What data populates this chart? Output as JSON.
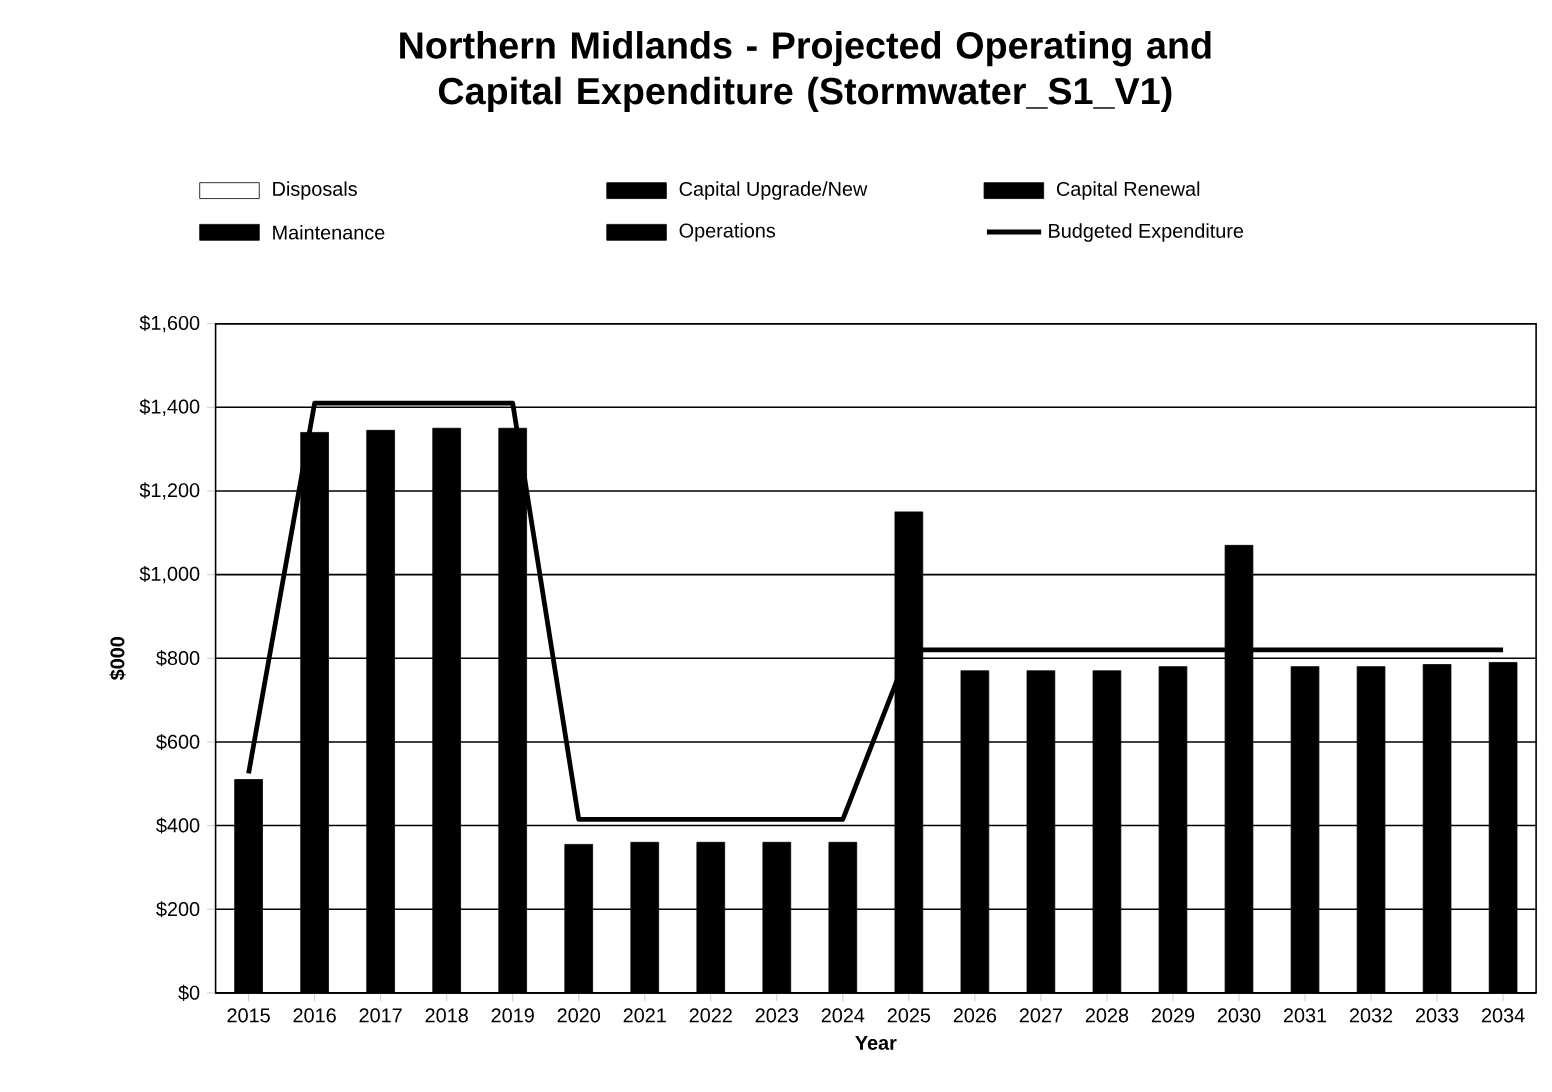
{
  "chart_data": {
    "type": "bar",
    "title": "Northern Midlands - Projected Operating and Capital Expenditure (Stormwater_S1_V1)",
    "xlabel": "Year",
    "ylabel": "$000",
    "categories": [
      "2015",
      "2016",
      "2017",
      "2018",
      "2019",
      "2020",
      "2021",
      "2022",
      "2023",
      "2024",
      "2025",
      "2026",
      "2027",
      "2028",
      "2029",
      "2030",
      "2031",
      "2032",
      "2033",
      "2034"
    ],
    "series": [
      {
        "color": "#000000",
        "values": [
          510,
          1340,
          1345,
          1350,
          1350,
          355,
          360,
          360,
          360,
          360,
          1150,
          770,
          770,
          770,
          780,
          1070,
          780,
          780,
          785,
          790
        ]
      },
      {
        "name": "Budgeted Expenditure",
        "type": "line",
        "color": "#000000",
        "values": [
          525,
          1410,
          1410,
          1410,
          1410,
          415,
          415,
          415,
          415,
          415,
          820,
          820,
          820,
          820,
          820,
          820,
          820,
          820,
          820,
          820
        ]
      }
    ],
    "annotations": [
      "Disposals",
      "Capital Upgrade/New",
      "Capital Renewal",
      "Maintenance",
      "Operations"
    ],
    "ylim": [
      0,
      1600
    ],
    "yticks": [
      {
        "value": 0,
        "label": "$0"
      },
      {
        "value": 200,
        "label": "$200"
      },
      {
        "value": 400,
        "label": "$400"
      },
      {
        "value": 600,
        "label": "$600"
      },
      {
        "value": 800,
        "label": "$800"
      },
      {
        "value": 1000,
        "label": "$1,000"
      },
      {
        "value": 1200,
        "label": "$1,200"
      },
      {
        "value": 1400,
        "label": "$1,400"
      },
      {
        "value": 1600,
        "label": "$1,600"
      }
    ],
    "grid": "y",
    "legend": "top"
  }
}
